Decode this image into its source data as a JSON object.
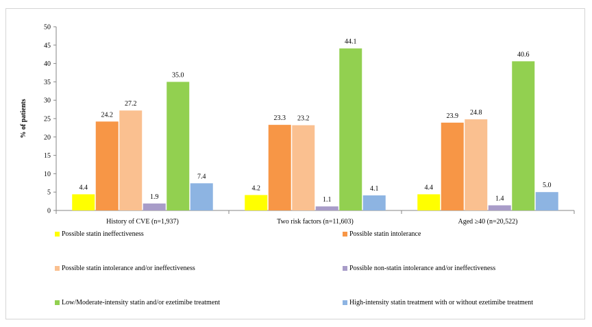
{
  "chart_data": {
    "type": "bar",
    "ylabel": "% of patients",
    "xlabel": "",
    "ylim": [
      0,
      50
    ],
    "yticks": [
      0,
      5,
      10,
      15,
      20,
      25,
      30,
      35,
      40,
      45,
      50
    ],
    "categories": [
      "History of CVE (n=1,937)",
      "Two risk factors (n=11,603)",
      "Aged ≥40 (n=20,522)"
    ],
    "series": [
      {
        "name": "Possible statin ineffectiveness",
        "color": "#ffff00",
        "values": [
          4.4,
          4.2,
          4.4
        ]
      },
      {
        "name": "Possible statin intolerance",
        "color": "#f79646",
        "values": [
          24.2,
          23.3,
          23.9
        ]
      },
      {
        "name": "Possible statin intolerance and/or ineffectiveness",
        "color": "#fac090",
        "values": [
          27.2,
          23.2,
          24.8
        ]
      },
      {
        "name": "Possible non-statin  intolerance and/or ineffectiveness",
        "color": "#a89cc8",
        "values": [
          1.9,
          1.1,
          1.4
        ]
      },
      {
        "name": "Low/Moderate-intensity statin and/or ezetimibe treatment",
        "color": "#92d050",
        "values": [
          35.0,
          44.1,
          40.6
        ]
      },
      {
        "name": "High-intensity statin treatment with or without ezetimibe treatment",
        "color": "#8db4e2",
        "values": [
          7.4,
          4.1,
          5.0
        ]
      }
    ],
    "legend_position": "bottom",
    "grid": false
  }
}
